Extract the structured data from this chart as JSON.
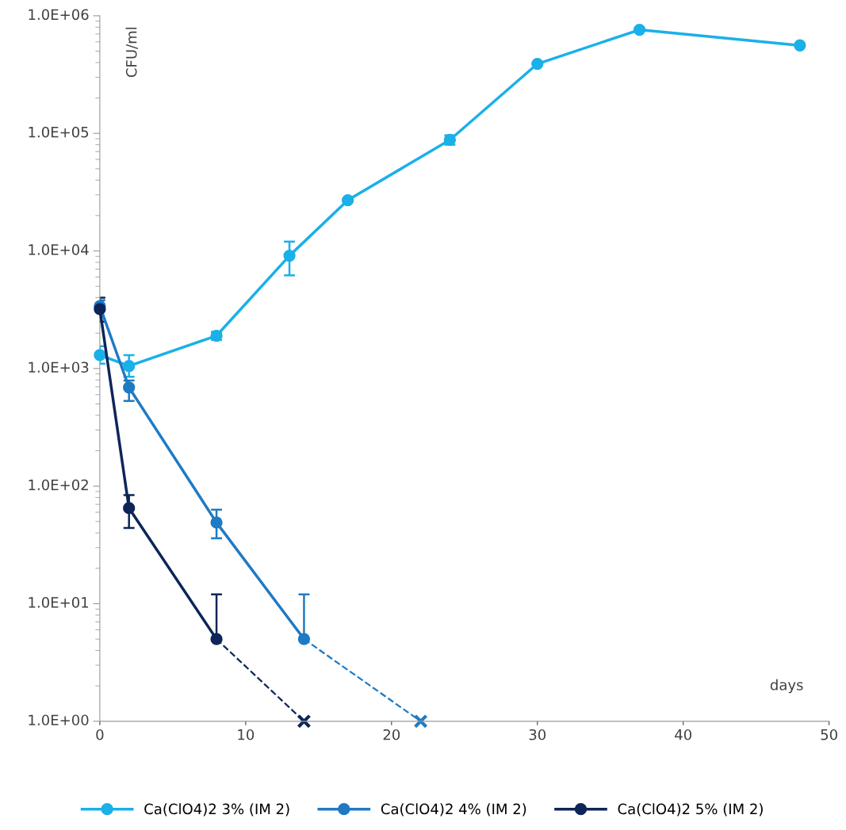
{
  "chart_data": {
    "type": "line",
    "xlabel": "days",
    "ylabel": "CFU/ml",
    "log": "y",
    "xlim": [
      0,
      50
    ],
    "xticks": [
      0,
      10,
      20,
      30,
      40,
      50
    ],
    "ylim": [
      1,
      1000000
    ],
    "yticks": [
      {
        "value": 1,
        "label": "1.0E+00"
      },
      {
        "value": 10,
        "label": "1.0E+01"
      },
      {
        "value": 100,
        "label": "1.0E+02"
      },
      {
        "value": 1000,
        "label": "1.0E+03"
      },
      {
        "value": 10000,
        "label": "1.0E+04"
      },
      {
        "value": 100000,
        "label": "1.0E+05"
      },
      {
        "value": 1000000,
        "label": "1.0E+06"
      }
    ],
    "grid": false,
    "legend": "bottom",
    "marker": "circle",
    "line_style": "solid",
    "series": [
      {
        "name": "Ca(ClO4)2 3% (IM 2)",
        "color": "#1ab0e8",
        "x": [
          0,
          2,
          8,
          13,
          17,
          24,
          30,
          37,
          48
        ],
        "values": [
          1300,
          1050,
          1900,
          9100,
          27000,
          88000,
          390000,
          760000,
          560000
        ],
        "errors": [
          [
            1100,
            1550
          ],
          [
            850,
            1300
          ],
          [
            1750,
            2050
          ],
          [
            6200,
            12000
          ],
          null,
          [
            80000,
            96000
          ],
          null,
          null,
          null
        ]
      },
      {
        "name": "Ca(ClO4)2 4% (IM 2)",
        "color": "#1f7ac4",
        "x": [
          0,
          2,
          8,
          14
        ],
        "values": [
          3400,
          690,
          49,
          5
        ],
        "errors": [
          [
            3400,
            3800
          ],
          [
            530,
            790
          ],
          [
            36,
            63
          ],
          [
            5,
            12
          ]
        ]
      },
      {
        "name": "Ca(ClO4)2 5% (IM 2)",
        "color": "#0d2559",
        "x": [
          0,
          2,
          8
        ],
        "values": [
          3200,
          65,
          5
        ],
        "errors": [
          [
            2500,
            4000
          ],
          [
            44,
            84
          ],
          [
            5,
            12
          ]
        ]
      },
      {
        "color": "#1f7ac4",
        "x": [
          14,
          22
        ],
        "values": [
          5,
          1
        ],
        "line_style": "dashed",
        "marker": "cross"
      },
      {
        "color": "#0d2559",
        "x": [
          8,
          14
        ],
        "values": [
          5,
          1
        ],
        "line_style": "dashed",
        "marker": "cross"
      }
    ]
  }
}
